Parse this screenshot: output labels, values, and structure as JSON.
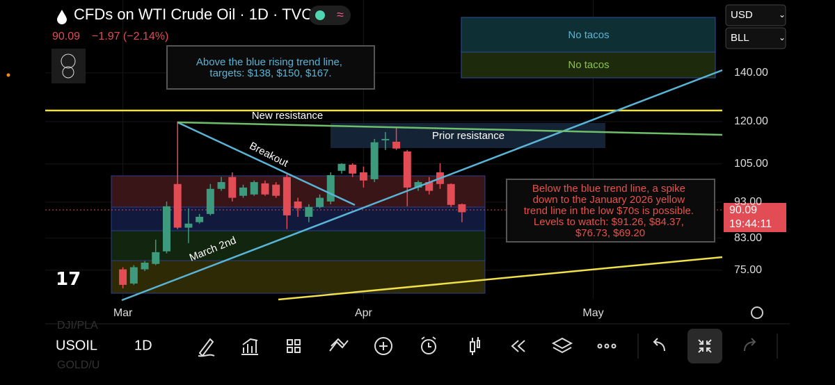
{
  "header": {
    "title": "CFDs on WTI Crude Oil · 1D · TVC",
    "price": "90.09",
    "change": "−1.97 (−2.14%)",
    "currency": "USD",
    "unit": "BLL"
  },
  "chart_data": {
    "type": "candlestick",
    "categories": [
      null,
      null,
      null,
      null,
      null,
      null,
      null,
      null,
      null,
      null,
      null,
      null,
      null,
      null,
      null,
      null,
      null,
      null,
      null,
      null,
      null,
      null,
      null,
      null,
      null,
      null,
      null,
      null,
      null,
      null,
      null,
      null
    ],
    "open": [
      75.2,
      71.9,
      75.2,
      76.5,
      79.6,
      98.5,
      85.8,
      87.3,
      89.6,
      97.0,
      100.7,
      94.9,
      95.3,
      98.7,
      98.3,
      100.7,
      93.2,
      88.8,
      91.6,
      93.2,
      102.7,
      104.7,
      102.2,
      100.0,
      113.1,
      112.6,
      109.2,
      97.4,
      99.1,
      102.2,
      98.5,
      92.4
    ],
    "high": [
      75.7,
      76.2,
      77.2,
      82.6,
      93.2,
      120.0,
      91.2,
      89.6,
      98.5,
      100.7,
      102.2,
      98.3,
      99.6,
      99.6,
      99.1,
      101.8,
      94.3,
      92.4,
      95.3,
      102.2,
      105.2,
      105.2,
      104.1,
      113.6,
      116.1,
      117.9,
      109.7,
      99.6,
      100.7,
      105.2,
      98.7,
      92.6
    ],
    "low": [
      70.8,
      71.6,
      74.8,
      76.2,
      79.1,
      85.4,
      81.7,
      86.9,
      89.2,
      96.4,
      93.2,
      94.3,
      94.9,
      94.9,
      94.3,
      85.4,
      88.8,
      87.3,
      91.2,
      92.4,
      101.8,
      100.7,
      97.4,
      99.1,
      109.7,
      109.7,
      91.8,
      96.4,
      95.3,
      97.0,
      91.6,
      87.3
    ],
    "close": [
      71.6,
      75.7,
      76.8,
      79.4,
      91.8,
      85.8,
      86.9,
      88.8,
      97.0,
      99.1,
      94.3,
      97.4,
      99.1,
      95.3,
      94.9,
      89.2,
      91.2,
      91.6,
      94.3,
      101.3,
      105.0,
      101.8,
      99.6,
      112.4,
      113.6,
      110.2,
      97.4,
      99.1,
      96.4,
      98.5,
      92.2,
      90.09
    ],
    "up_color": "#3d9a7c",
    "down_color": "#e24c55",
    "xlim": [
      -7.1,
      54.8
    ],
    "xticks": [
      {
        "value": 0,
        "label": "Mar"
      },
      {
        "value": 22,
        "label": "Apr"
      },
      {
        "value": 43,
        "label": "May"
      }
    ],
    "ylim": [
      68.5,
      176.3
    ],
    "yticks": [
      {
        "value": 140,
        "label": "140.00"
      },
      {
        "value": 120,
        "label": "120.00"
      },
      {
        "value": 105,
        "label": "105.00"
      },
      {
        "value": 93,
        "label": "93.00"
      },
      {
        "value": 83,
        "label": "83.00"
      },
      {
        "value": 75,
        "label": "75.00"
      }
    ],
    "log_scale": true,
    "grid": true,
    "countdown": "19:44:11"
  },
  "annotations": {
    "above": [
      "Above the blue rising trend line,",
      "targets: $138, $150, $167."
    ],
    "below": [
      "Below the blue trend line, a spike",
      "down to the January 2026 yellow",
      "trend line in the low $70s is possible.",
      "Levels to watch: $91.26, $84.37,",
      "$76.73, $69.20"
    ],
    "no_tacos_1": "No tacos",
    "no_tacos_2": "No tacos",
    "new_resistance": "New resistance",
    "prior_resistance": "Prior resistance",
    "breakout": "Breakout",
    "march_2nd": "March 2nd"
  },
  "toolbar": {
    "symbol": "USOIL",
    "interval": "1D",
    "behind_top": "DJI/PLA",
    "behind_bottom": "GOLD/U"
  }
}
